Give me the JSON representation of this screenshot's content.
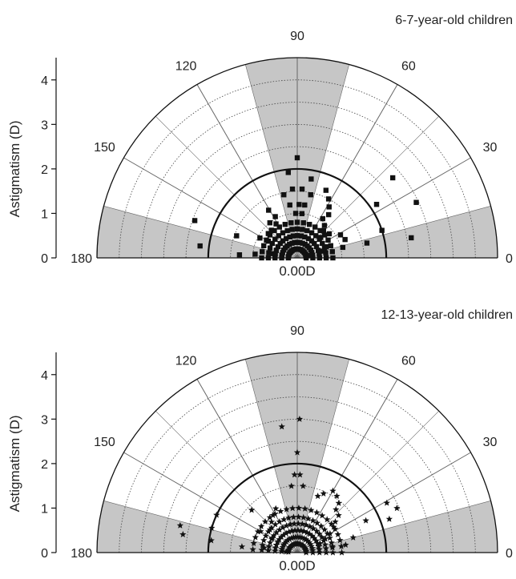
{
  "chart_data": [
    {
      "type": "scatter",
      "subtype": "polar-semicircle",
      "title": "6-7-year-old children",
      "ylabel": "Astigmatism (D)",
      "center_label": "0.00D",
      "radial_range": [
        0,
        4.5
      ],
      "radial_ticks": [
        "0",
        "1",
        "2",
        "3",
        "4"
      ],
      "angle_range": [
        0,
        180
      ],
      "angle_ticks": [
        "0",
        "30",
        "60",
        "90",
        "120",
        "150",
        "180"
      ],
      "highlight_radius": 2,
      "shaded_sectors": [
        [
          0,
          15
        ],
        [
          75,
          105
        ],
        [
          165,
          180
        ]
      ],
      "marker": "square",
      "rings": [
        0.2,
        0.35,
        0.5,
        0.65,
        0.8
      ],
      "ring_angle_step": 10,
      "points": [
        {
          "r": 2.25,
          "angle": 90
        },
        {
          "r": 1.93,
          "angle": 96
        },
        {
          "r": 1.8,
          "angle": 80
        },
        {
          "r": 1.55,
          "angle": 86
        },
        {
          "r": 1.55,
          "angle": 94
        },
        {
          "r": 1.45,
          "angle": 102
        },
        {
          "r": 1.45,
          "angle": 78
        },
        {
          "r": 1.2,
          "angle": 88
        },
        {
          "r": 1.2,
          "angle": 98
        },
        {
          "r": 1.2,
          "angle": 82
        },
        {
          "r": 1.0,
          "angle": 92
        },
        {
          "r": 1.0,
          "angle": 84
        },
        {
          "r": 1.65,
          "angle": 67
        },
        {
          "r": 1.5,
          "angle": 62
        },
        {
          "r": 1.35,
          "angle": 58
        },
        {
          "r": 1.2,
          "angle": 54
        },
        {
          "r": 1.05,
          "angle": 57
        },
        {
          "r": 0.95,
          "angle": 50
        },
        {
          "r": 0.85,
          "angle": 46
        },
        {
          "r": 0.7,
          "angle": 41
        },
        {
          "r": 0.9,
          "angle": 37
        },
        {
          "r": 1.1,
          "angle": 28
        },
        {
          "r": 1.15,
          "angle": 21
        },
        {
          "r": 1.05,
          "angle": 13
        },
        {
          "r": 0.7,
          "angle": 21
        },
        {
          "r": 0.55,
          "angle": 16
        },
        {
          "r": 0.3,
          "angle": 10
        },
        {
          "r": 2.8,
          "angle": 40
        },
        {
          "r": 2.15,
          "angle": 34
        },
        {
          "r": 2.95,
          "angle": 25
        },
        {
          "r": 2.0,
          "angle": 18
        },
        {
          "r": 2.6,
          "angle": 10
        },
        {
          "r": 1.6,
          "angle": 12
        },
        {
          "r": 1.05,
          "angle": 118
        },
        {
          "r": 1.25,
          "angle": 121
        },
        {
          "r": 0.9,
          "angle": 122
        },
        {
          "r": 1.0,
          "angle": 128
        },
        {
          "r": 0.85,
          "angle": 133
        },
        {
          "r": 0.85,
          "angle": 140
        },
        {
          "r": 0.65,
          "angle": 140
        },
        {
          "r": 0.75,
          "angle": 150
        },
        {
          "r": 0.95,
          "angle": 152
        },
        {
          "r": 0.5,
          "angle": 160
        },
        {
          "r": 1.45,
          "angle": 160
        },
        {
          "r": 2.2,
          "angle": 173
        },
        {
          "r": 2.45,
          "angle": 160
        },
        {
          "r": 1.3,
          "angle": 177
        },
        {
          "r": 0.95,
          "angle": 175
        },
        {
          "r": 0.55,
          "angle": 170
        },
        {
          "r": 0.2,
          "angle": 178
        }
      ]
    },
    {
      "type": "scatter",
      "subtype": "polar-semicircle",
      "title": "12-13-year-old children",
      "ylabel": "Astigmatism (D)",
      "center_label": "0.00D",
      "radial_range": [
        0,
        4.5
      ],
      "radial_ticks": [
        "0",
        "1",
        "2",
        "3",
        "4"
      ],
      "angle_range": [
        0,
        180
      ],
      "angle_ticks": [
        "0",
        "30",
        "60",
        "90",
        "120",
        "150",
        "180"
      ],
      "highlight_radius": 2,
      "shaded_sectors": [
        [
          0,
          15
        ],
        [
          75,
          105
        ],
        [
          165,
          180
        ]
      ],
      "marker": "star",
      "rings": [
        0.2,
        0.35,
        0.5,
        0.65,
        0.8,
        1.0
      ],
      "ring_angle_step": 8,
      "points": [
        {
          "r": 3.0,
          "angle": 89
        },
        {
          "r": 2.85,
          "angle": 97
        },
        {
          "r": 2.25,
          "angle": 90
        },
        {
          "r": 1.75,
          "angle": 92
        },
        {
          "r": 1.75,
          "angle": 88
        },
        {
          "r": 1.5,
          "angle": 85
        },
        {
          "r": 1.5,
          "angle": 95
        },
        {
          "r": 1.35,
          "angle": 70
        },
        {
          "r": 1.45,
          "angle": 66
        },
        {
          "r": 1.6,
          "angle": 60
        },
        {
          "r": 1.55,
          "angle": 55
        },
        {
          "r": 1.45,
          "angle": 50
        },
        {
          "r": 1.3,
          "angle": 48
        },
        {
          "r": 1.25,
          "angle": 42
        },
        {
          "r": 1.1,
          "angle": 39
        },
        {
          "r": 1.0,
          "angle": 35
        },
        {
          "r": 0.85,
          "angle": 30
        },
        {
          "r": 0.7,
          "angle": 26
        },
        {
          "r": 0.55,
          "angle": 22
        },
        {
          "r": 2.3,
          "angle": 29
        },
        {
          "r": 2.45,
          "angle": 24
        },
        {
          "r": 2.2,
          "angle": 20
        },
        {
          "r": 1.7,
          "angle": 25
        },
        {
          "r": 1.3,
          "angle": 15
        },
        {
          "r": 1.1,
          "angle": 9
        },
        {
          "r": 0.8,
          "angle": 10
        },
        {
          "r": 0.5,
          "angle": 8
        },
        {
          "r": 1.1,
          "angle": 116
        },
        {
          "r": 1.0,
          "angle": 123
        },
        {
          "r": 0.9,
          "angle": 130
        },
        {
          "r": 0.8,
          "angle": 140
        },
        {
          "r": 0.65,
          "angle": 150
        },
        {
          "r": 1.4,
          "angle": 137
        },
        {
          "r": 0.95,
          "angle": 150
        },
        {
          "r": 2.0,
          "angle": 155
        },
        {
          "r": 2.0,
          "angle": 164
        },
        {
          "r": 1.95,
          "angle": 172
        },
        {
          "r": 2.7,
          "angle": 167
        },
        {
          "r": 2.6,
          "angle": 171
        },
        {
          "r": 0.5,
          "angle": 160
        },
        {
          "r": 0.35,
          "angle": 168
        },
        {
          "r": 0.25,
          "angle": 176
        },
        {
          "r": 1.25,
          "angle": 174
        },
        {
          "r": 0.75,
          "angle": 172
        }
      ]
    }
  ]
}
